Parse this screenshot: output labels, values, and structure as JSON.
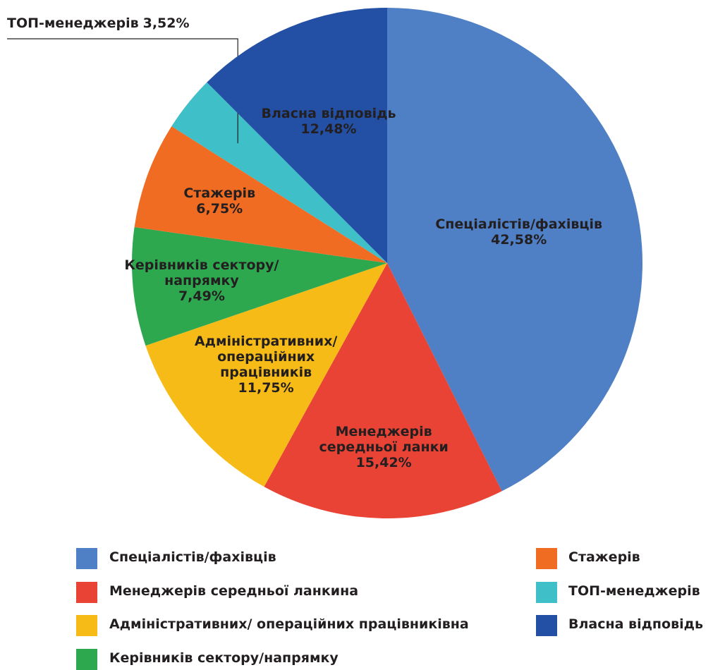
{
  "chart_data": {
    "type": "pie",
    "categories": [
      "Спеціалістів/фахівців",
      "Менеджерів середньої ланки",
      "Адміністративних/ операційних працівників",
      "Керівників сектору/ напрямку",
      "Стажерів",
      "ТОП-менеджерів",
      "Власна відповідь"
    ],
    "values": [
      42.58,
      15.42,
      11.75,
      7.49,
      6.75,
      3.52,
      12.48
    ],
    "value_labels": [
      "42,58%",
      "15,42%",
      "11,75%",
      "7,49%",
      "6,75%",
      "3,52%",
      "12,48%"
    ],
    "colors": [
      "#4f7fc4",
      "#e94335",
      "#f7bb17",
      "#2ea84f",
      "#f06c22",
      "#3fbfc8",
      "#2350a5"
    ],
    "legend": [
      "Спеціалістів/фахівців",
      "Менеджерів середньої ланкина",
      "Адміністративних/ операційних працівниківна",
      "Керівників сектору/напрямку",
      "Стажерів",
      "ТОП-менеджерів",
      "Власна відповідь"
    ]
  }
}
